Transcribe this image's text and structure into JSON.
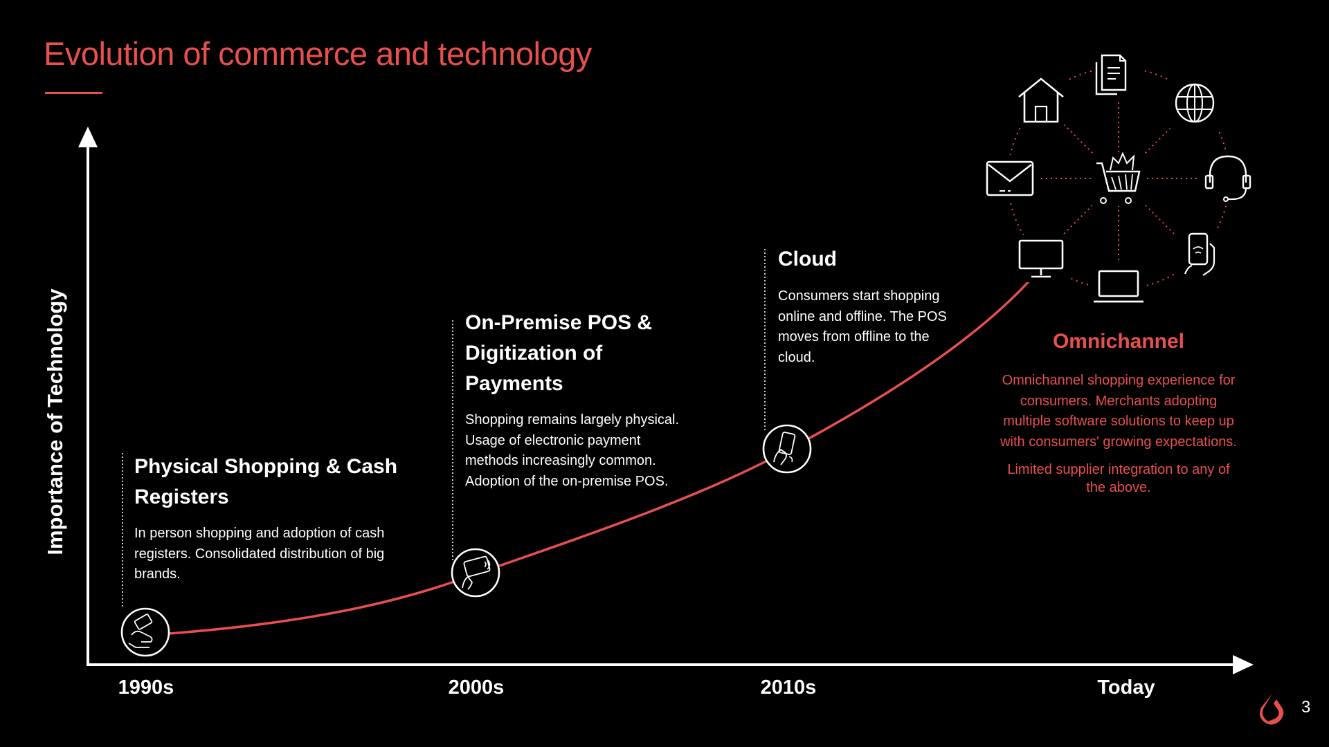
{
  "slide": {
    "title": "Evolution of commerce and technology",
    "y_axis_label": "Importance of Technology",
    "page_number": "3",
    "accent_color": "#e8504f"
  },
  "x_axis": {
    "labels": [
      "1990s",
      "2000s",
      "2010s",
      "Today"
    ]
  },
  "eras": [
    {
      "title_lines": [
        "Physical Shopping & Cash",
        "Registers"
      ],
      "description_lines": [
        "In person shopping and adoption of cash",
        "registers.  Consolidated distribution of big",
        "brands."
      ],
      "icon": "cash-in-hand-icon"
    },
    {
      "title_lines": [
        "On-Premise POS &",
        "Digitization of",
        "Payments"
      ],
      "description_lines": [
        "Shopping remains largely physical.",
        "Usage of electronic payment",
        "methods increasingly common.",
        "Adoption of the on-premise POS."
      ],
      "icon": "contactless-card-icon"
    },
    {
      "title_lines": [
        "Cloud"
      ],
      "description_lines": [
        "Consumers start shopping",
        "online and offline. The POS",
        "moves from offline to the",
        "cloud."
      ],
      "icon": "mobile-phone-in-hand-icon"
    }
  ],
  "omnichannel": {
    "title": "Omnichannel",
    "description_lines": [
      "Omnichannel shopping experience for",
      "consumers. Merchants adopting",
      "multiple software solutions to keep up",
      "with consumers' growing expectations."
    ],
    "note_lines": [
      "Limited supplier integration to any of",
      "the above."
    ],
    "hub_icon": "shopping-cart-icon",
    "channel_icons": [
      "store-icon",
      "documents-icon",
      "globe-icon",
      "email-icon",
      "headset-icon",
      "monitor-icon",
      "laptop-icon",
      "smartphone-icon"
    ]
  },
  "logo": "lightspeed-flame-logo"
}
